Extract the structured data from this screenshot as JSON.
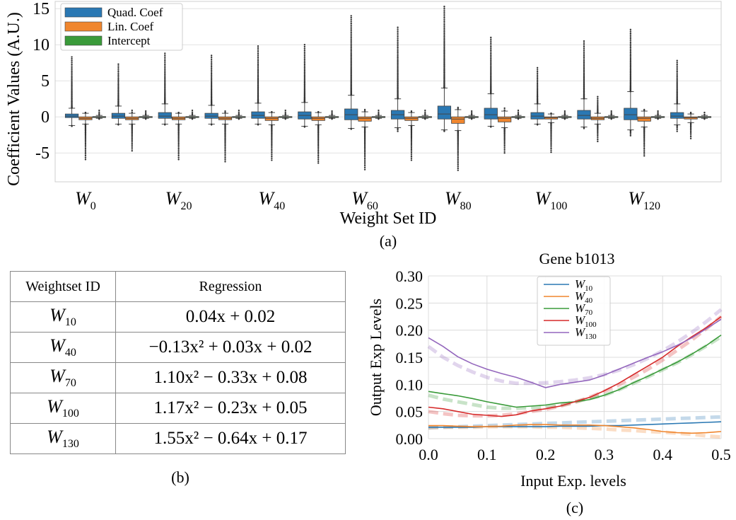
{
  "chart_data": [
    {
      "type": "box",
      "panel": "(a)",
      "title": "",
      "xlabel": "Weight Set ID",
      "ylabel": "Coefficient Values (A.U.)",
      "ylim": [
        -9,
        16
      ],
      "yticks": [
        -5,
        0,
        5,
        10,
        15
      ],
      "grid": true,
      "legend_position": "top-left",
      "tick_labels": [
        {
          "main": "W",
          "sub": "0"
        },
        {
          "main": "W",
          "sub": "20"
        },
        {
          "main": "W",
          "sub": "40"
        },
        {
          "main": "W",
          "sub": "60"
        },
        {
          "main": "W",
          "sub": "80"
        },
        {
          "main": "W",
          "sub": "100"
        },
        {
          "main": "W",
          "sub": "120"
        }
      ],
      "series": [
        {
          "name": "Quad. Coef",
          "color": "#2a78b3",
          "q1": [
            -0.1,
            -0.2,
            -0.2,
            -0.2,
            -0.2,
            -0.3,
            -0.4,
            -0.3,
            -0.3,
            -0.3,
            -0.3,
            -0.3,
            -0.4,
            -0.2
          ],
          "median": [
            0.1,
            0.1,
            0.1,
            0.1,
            0.2,
            0.2,
            0.3,
            0.3,
            0.4,
            0.3,
            0.1,
            0.2,
            0.3,
            0.1
          ],
          "q3": [
            0.4,
            0.5,
            0.6,
            0.5,
            0.7,
            0.7,
            1.1,
            0.9,
            1.5,
            1.2,
            0.6,
            0.9,
            1.2,
            0.6
          ],
          "wlow": [
            -1.2,
            -1.0,
            -1.0,
            -1.0,
            -1.0,
            -1.3,
            -1.6,
            -1.5,
            -1.8,
            -1.3,
            -1.0,
            -1.4,
            -1.8,
            -1.1
          ],
          "whigh": [
            1.2,
            1.5,
            1.8,
            1.6,
            1.9,
            2.0,
            3.0,
            2.5,
            4.0,
            3.2,
            1.8,
            2.5,
            3.5,
            1.8
          ],
          "flier_max": [
            8.3,
            7.3,
            8.8,
            8.5,
            9.8,
            10.0,
            14.0,
            12.4,
            15.3,
            11.0,
            6.8,
            10.5,
            12.1,
            7.8
          ],
          "flier_min": [
            -1.3,
            -1.1,
            -1.1,
            -1.1,
            -1.1,
            -1.4,
            -1.7,
            -2.0,
            -2.0,
            -1.4,
            -1.1,
            -1.6,
            -2.6,
            -2.0
          ]
        },
        {
          "name": "Lin. Coef",
          "color": "#f0862e",
          "q1": [
            -0.4,
            -0.4,
            -0.4,
            -0.4,
            -0.5,
            -0.5,
            -0.6,
            -0.5,
            -0.9,
            -0.7,
            -0.3,
            -0.4,
            -0.6,
            -0.3
          ],
          "median": [
            -0.2,
            -0.2,
            -0.2,
            -0.2,
            -0.2,
            -0.2,
            -0.2,
            -0.2,
            -0.3,
            -0.2,
            -0.1,
            -0.2,
            -0.2,
            -0.1
          ],
          "q3": [
            0.0,
            0.0,
            0.0,
            0.0,
            0.0,
            0.0,
            0.0,
            0.0,
            0.0,
            0.0,
            0.0,
            0.0,
            0.0,
            0.0
          ],
          "wlow": [
            -1.0,
            -1.0,
            -1.0,
            -1.0,
            -1.1,
            -1.1,
            -1.4,
            -1.2,
            -1.9,
            -1.5,
            -0.8,
            -1.0,
            -1.4,
            -0.8
          ],
          "whigh": [
            0.5,
            0.5,
            0.5,
            0.5,
            0.6,
            0.6,
            0.7,
            0.6,
            1.0,
            0.8,
            0.4,
            0.5,
            0.8,
            0.4
          ],
          "flier_max": [
            0.6,
            0.9,
            0.6,
            0.8,
            0.7,
            0.7,
            1.0,
            0.8,
            1.3,
            1.2,
            0.5,
            2.8,
            1.0,
            0.6
          ],
          "flier_min": [
            -5.9,
            -4.7,
            -5.9,
            -6.2,
            -6.0,
            -6.4,
            -7.3,
            -6.0,
            -7.4,
            -5.0,
            -4.9,
            -3.4,
            -5.4,
            -3.0
          ]
        },
        {
          "name": "Intercept",
          "color": "#3a9b3a",
          "q1": [
            -0.05,
            -0.05,
            -0.05,
            -0.05,
            -0.05,
            -0.05,
            -0.05,
            -0.05,
            -0.05,
            -0.05,
            -0.05,
            -0.05,
            -0.05,
            -0.05
          ],
          "median": [
            0.0,
            0.0,
            0.0,
            0.0,
            0.0,
            0.0,
            0.0,
            0.0,
            0.0,
            0.0,
            0.0,
            0.0,
            0.0,
            0.0
          ],
          "q3": [
            0.05,
            0.05,
            0.05,
            0.05,
            0.05,
            0.05,
            0.05,
            0.05,
            0.05,
            0.05,
            0.05,
            0.05,
            0.05,
            0.05
          ],
          "wlow": [
            -0.2,
            -0.2,
            -0.2,
            -0.2,
            -0.2,
            -0.2,
            -0.2,
            -0.2,
            -0.2,
            -0.2,
            -0.2,
            -0.2,
            -0.2,
            -0.2
          ],
          "whigh": [
            0.2,
            0.2,
            0.2,
            0.2,
            0.2,
            0.2,
            0.2,
            0.2,
            0.2,
            0.2,
            0.2,
            0.2,
            0.2,
            0.2
          ],
          "flier_max": [
            0.9,
            0.8,
            0.9,
            0.9,
            0.9,
            0.8,
            0.9,
            0.9,
            0.8,
            0.9,
            0.8,
            0.8,
            0.8,
            0.6
          ],
          "flier_min": [
            -0.3,
            -0.3,
            -0.3,
            -0.3,
            -0.3,
            -0.3,
            -0.3,
            -0.3,
            -0.3,
            -0.3,
            -0.3,
            -0.3,
            -0.3,
            -0.3
          ]
        }
      ]
    },
    {
      "type": "line",
      "panel": "(c)",
      "title": "Gene b1013",
      "xlabel": "Input Exp. levels",
      "ylabel": "Output Exp Levels",
      "xlim": [
        0.0,
        0.5
      ],
      "ylim": [
        0.0,
        0.3
      ],
      "xticks": [
        "0.0",
        "0.1",
        "0.2",
        "0.3",
        "0.4",
        "0.5"
      ],
      "yticks": [
        "0.00",
        "0.05",
        "0.10",
        "0.15",
        "0.20",
        "0.25",
        "0.30"
      ],
      "grid": true,
      "legend_position": "top-center",
      "x": [
        0.0,
        0.025,
        0.05,
        0.075,
        0.1,
        0.125,
        0.15,
        0.175,
        0.2,
        0.225,
        0.25,
        0.275,
        0.3,
        0.325,
        0.35,
        0.375,
        0.4,
        0.425,
        0.45,
        0.475,
        0.5
      ],
      "series": [
        {
          "name": "W",
          "sub": "10",
          "color": "#2a78b3",
          "values": [
            0.021,
            0.021,
            0.021,
            0.021,
            0.022,
            0.022,
            0.022,
            0.022,
            0.022,
            0.023,
            0.023,
            0.023,
            0.024,
            0.024,
            0.025,
            0.026,
            0.027,
            0.028,
            0.029,
            0.03,
            0.031
          ],
          "fit": [
            0.02,
            0.021,
            0.022,
            0.023,
            0.024,
            0.025,
            0.026,
            0.027,
            0.028,
            0.029,
            0.03,
            0.031,
            0.032,
            0.033,
            0.034,
            0.035,
            0.036,
            0.037,
            0.038,
            0.039,
            0.04
          ]
        },
        {
          "name": "W",
          "sub": "40",
          "color": "#f0862e",
          "values": [
            0.024,
            0.024,
            0.023,
            0.022,
            0.022,
            0.023,
            0.025,
            0.026,
            0.026,
            0.025,
            0.025,
            0.025,
            0.024,
            0.022,
            0.02,
            0.017,
            0.013,
            0.011,
            0.01,
            0.011,
            0.013
          ],
          "fit": [
            0.02,
            0.021,
            0.021,
            0.021,
            0.022,
            0.022,
            0.022,
            0.022,
            0.021,
            0.021,
            0.02,
            0.019,
            0.018,
            0.016,
            0.015,
            0.013,
            0.012,
            0.01,
            0.008,
            0.005,
            0.003
          ]
        },
        {
          "name": "W",
          "sub": "70",
          "color": "#3a9b3a",
          "values": [
            0.087,
            0.083,
            0.079,
            0.074,
            0.068,
            0.063,
            0.058,
            0.06,
            0.062,
            0.066,
            0.068,
            0.072,
            0.08,
            0.09,
            0.103,
            0.115,
            0.128,
            0.141,
            0.156,
            0.172,
            0.191
          ],
          "fit": [
            0.08,
            0.073,
            0.068,
            0.063,
            0.058,
            0.056,
            0.056,
            0.057,
            0.058,
            0.061,
            0.068,
            0.074,
            0.08,
            0.09,
            0.102,
            0.114,
            0.127,
            0.14,
            0.155,
            0.171,
            0.188
          ]
        },
        {
          "name": "W",
          "sub": "100",
          "color": "#d62a2a",
          "values": [
            0.058,
            0.055,
            0.05,
            0.045,
            0.043,
            0.041,
            0.044,
            0.051,
            0.055,
            0.06,
            0.068,
            0.076,
            0.088,
            0.102,
            0.118,
            0.134,
            0.15,
            0.17,
            0.188,
            0.205,
            0.225
          ],
          "fit": [
            0.05,
            0.046,
            0.043,
            0.042,
            0.042,
            0.043,
            0.046,
            0.05,
            0.054,
            0.06,
            0.067,
            0.076,
            0.087,
            0.099,
            0.113,
            0.128,
            0.145,
            0.163,
            0.182,
            0.203,
            0.225
          ]
        },
        {
          "name": "W",
          "sub": "130",
          "color": "#9467bd",
          "values": [
            0.186,
            0.17,
            0.151,
            0.138,
            0.128,
            0.12,
            0.113,
            0.104,
            0.094,
            0.1,
            0.104,
            0.108,
            0.117,
            0.128,
            0.139,
            0.15,
            0.16,
            0.172,
            0.186,
            0.203,
            0.22
          ],
          "fit": [
            0.17,
            0.15,
            0.135,
            0.123,
            0.113,
            0.106,
            0.102,
            0.102,
            0.103,
            0.105,
            0.108,
            0.112,
            0.118,
            0.126,
            0.136,
            0.148,
            0.162,
            0.178,
            0.196,
            0.216,
            0.238
          ]
        }
      ]
    }
  ],
  "table": {
    "header": [
      "Weightset ID",
      "Regression"
    ],
    "rows": [
      {
        "id": "W",
        "sub": "10",
        "regression": "0.04x + 0.02"
      },
      {
        "id": "W",
        "sub": "40",
        "regression": "−0.13x² + 0.03x + 0.02"
      },
      {
        "id": "W",
        "sub": "70",
        "regression": "1.10x² − 0.33x + 0.08"
      },
      {
        "id": "W",
        "sub": "100",
        "regression": "1.17x² − 0.23x + 0.05"
      },
      {
        "id": "W",
        "sub": "130",
        "regression": "1.55x² − 0.64x + 0.17"
      }
    ]
  },
  "captions": {
    "a": "(a)",
    "b": "(b)",
    "c": "(c)"
  }
}
